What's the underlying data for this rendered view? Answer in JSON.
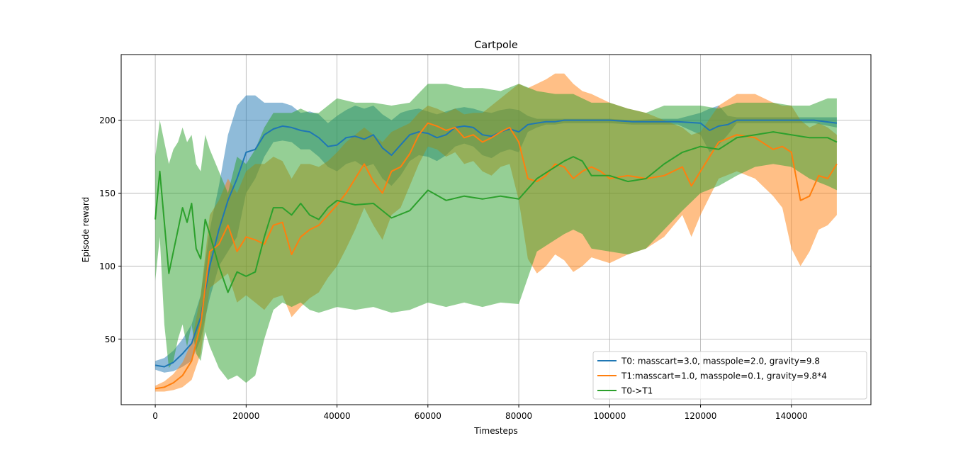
{
  "chart_data": {
    "type": "line",
    "title": "Cartpole",
    "xlabel": "Timesteps",
    "ylabel": "Episode reward",
    "xlim": [
      -7500,
      157500
    ],
    "ylim": [
      5,
      245
    ],
    "xticks": [
      0,
      20000,
      40000,
      60000,
      80000,
      100000,
      120000,
      140000
    ],
    "yticks": [
      50,
      100,
      150,
      200
    ],
    "grid": true,
    "legend_position": "lower-right",
    "series": [
      {
        "name": "T0: masscart=3.0, masspole=2.0, gravity=9.8",
        "color": "#1f77b4",
        "x": [
          0,
          2000,
          4000,
          6000,
          8000,
          10000,
          12000,
          14000,
          16000,
          18000,
          20000,
          22000,
          24000,
          26000,
          28000,
          30000,
          32000,
          34000,
          36000,
          38000,
          40000,
          42000,
          44000,
          46000,
          48000,
          50000,
          52000,
          54000,
          56000,
          58000,
          60000,
          62000,
          64000,
          66000,
          68000,
          70000,
          72000,
          74000,
          76000,
          78000,
          80000,
          82000,
          84000,
          86000,
          88000,
          90000,
          95000,
          100000,
          105000,
          110000,
          115000,
          120000,
          122000,
          124000,
          126000,
          128000,
          130000,
          135000,
          140000,
          145000,
          150000
        ],
        "mean": [
          32,
          31,
          34,
          40,
          47,
          65,
          100,
          125,
          145,
          160,
          178,
          180,
          190,
          194,
          196,
          195,
          193,
          192,
          188,
          182,
          183,
          188,
          189,
          187,
          190,
          181,
          176,
          183,
          190,
          192,
          191,
          188,
          190,
          195,
          196,
          195,
          190,
          189,
          192,
          194,
          192,
          197,
          198,
          199,
          199,
          200,
          200,
          200,
          199,
          199,
          199,
          198,
          193,
          196,
          197,
          200,
          200,
          200,
          200,
          200,
          198
        ],
        "upper": [
          35,
          37,
          42,
          50,
          60,
          80,
          125,
          155,
          190,
          210,
          217,
          217,
          212,
          212,
          212,
          210,
          205,
          206,
          204,
          198,
          203,
          207,
          210,
          208,
          210,
          204,
          200,
          205,
          207,
          208,
          206,
          204,
          206,
          208,
          209,
          208,
          206,
          205,
          207,
          208,
          207,
          203,
          201,
          201,
          201,
          201,
          201,
          201,
          200,
          201,
          201,
          205,
          208,
          210,
          203,
          202,
          202,
          202,
          202,
          202,
          202
        ],
        "lower": [
          29,
          27,
          28,
          31,
          35,
          50,
          78,
          100,
          110,
          120,
          150,
          160,
          175,
          185,
          186,
          185,
          180,
          180,
          175,
          168,
          165,
          170,
          172,
          168,
          170,
          160,
          155,
          162,
          172,
          176,
          175,
          172,
          176,
          182,
          184,
          182,
          176,
          174,
          178,
          180,
          178,
          192,
          195,
          197,
          197,
          198,
          198,
          198,
          197,
          197,
          197,
          190,
          178,
          183,
          190,
          198,
          198,
          198,
          198,
          198,
          195
        ]
      },
      {
        "name": "T1:masscart=1.0, masspole=0.1, gravity=9.8*4",
        "color": "#ff7f0e",
        "x": [
          0,
          2000,
          4000,
          6000,
          8000,
          10000,
          12000,
          14000,
          16000,
          18000,
          20000,
          22000,
          24000,
          26000,
          28000,
          30000,
          32000,
          34000,
          36000,
          38000,
          40000,
          42000,
          44000,
          46000,
          48000,
          50000,
          52000,
          54000,
          56000,
          58000,
          60000,
          62000,
          64000,
          66000,
          68000,
          70000,
          72000,
          74000,
          76000,
          78000,
          80000,
          82000,
          84000,
          86000,
          88000,
          90000,
          92000,
          94000,
          96000,
          98000,
          100000,
          104000,
          108000,
          112000,
          116000,
          118000,
          120000,
          124000,
          128000,
          132000,
          136000,
          138000,
          140000,
          142000,
          144000,
          146000,
          148000,
          150000
        ],
        "mean": [
          16,
          17,
          20,
          25,
          35,
          60,
          110,
          115,
          128,
          110,
          120,
          118,
          115,
          128,
          130,
          108,
          120,
          125,
          128,
          135,
          142,
          150,
          160,
          170,
          158,
          150,
          165,
          168,
          177,
          190,
          198,
          196,
          193,
          195,
          188,
          190,
          185,
          188,
          192,
          195,
          185,
          160,
          158,
          162,
          170,
          168,
          160,
          165,
          168,
          165,
          160,
          162,
          160,
          162,
          168,
          155,
          165,
          185,
          190,
          188,
          180,
          182,
          178,
          145,
          148,
          162,
          160,
          170
        ],
        "upper": [
          18,
          21,
          26,
          34,
          48,
          80,
          135,
          145,
          160,
          150,
          165,
          170,
          170,
          175,
          172,
          160,
          170,
          170,
          168,
          172,
          178,
          185,
          190,
          195,
          190,
          185,
          192,
          195,
          198,
          205,
          210,
          208,
          205,
          208,
          204,
          205,
          205,
          210,
          215,
          220,
          225,
          222,
          225,
          228,
          232,
          232,
          225,
          220,
          218,
          215,
          212,
          208,
          205,
          200,
          195,
          190,
          192,
          210,
          218,
          218,
          212,
          210,
          210,
          200,
          195,
          198,
          195,
          190
        ],
        "lower": [
          14,
          14,
          15,
          17,
          22,
          40,
          85,
          90,
          95,
          75,
          80,
          75,
          70,
          78,
          80,
          65,
          72,
          78,
          82,
          92,
          100,
          112,
          125,
          140,
          128,
          118,
          135,
          140,
          155,
          170,
          182,
          180,
          175,
          178,
          170,
          172,
          165,
          162,
          168,
          170,
          145,
          105,
          95,
          100,
          108,
          104,
          96,
          100,
          106,
          104,
          102,
          108,
          112,
          120,
          135,
          120,
          135,
          160,
          165,
          160,
          148,
          140,
          112,
          100,
          110,
          125,
          128,
          135
        ]
      },
      {
        "name": "T0->T1",
        "color": "#2ca02c",
        "x": [
          0,
          1000,
          2000,
          3000,
          4000,
          5000,
          6000,
          7000,
          8000,
          9000,
          10000,
          11000,
          12000,
          14000,
          16000,
          18000,
          20000,
          22000,
          24000,
          26000,
          28000,
          30000,
          32000,
          34000,
          36000,
          38000,
          40000,
          44000,
          48000,
          52000,
          56000,
          60000,
          64000,
          68000,
          72000,
          76000,
          80000,
          84000,
          88000,
          90000,
          92000,
          94000,
          96000,
          100000,
          104000,
          108000,
          112000,
          116000,
          120000,
          124000,
          128000,
          132000,
          136000,
          140000,
          144000,
          148000,
          150000
        ],
        "mean": [
          132,
          165,
          130,
          95,
          110,
          125,
          140,
          130,
          143,
          112,
          105,
          132,
          122,
          100,
          82,
          96,
          93,
          96,
          120,
          140,
          140,
          135,
          143,
          135,
          132,
          140,
          145,
          142,
          143,
          133,
          138,
          152,
          145,
          148,
          146,
          148,
          146,
          160,
          168,
          172,
          175,
          172,
          162,
          162,
          158,
          160,
          170,
          178,
          182,
          180,
          188,
          190,
          192,
          190,
          188,
          188,
          185
        ],
        "upper": [
          175,
          200,
          185,
          170,
          180,
          185,
          195,
          185,
          190,
          170,
          165,
          190,
          180,
          165,
          150,
          175,
          170,
          180,
          195,
          205,
          205,
          205,
          208,
          205,
          205,
          210,
          215,
          212,
          212,
          210,
          212,
          225,
          225,
          222,
          222,
          220,
          225,
          220,
          218,
          218,
          218,
          215,
          212,
          212,
          208,
          205,
          210,
          210,
          210,
          208,
          212,
          212,
          212,
          210,
          210,
          215,
          215
        ],
        "lower": [
          90,
          120,
          60,
          30,
          35,
          50,
          60,
          45,
          60,
          40,
          35,
          55,
          45,
          30,
          22,
          25,
          20,
          25,
          50,
          70,
          75,
          72,
          75,
          70,
          68,
          70,
          72,
          70,
          72,
          68,
          70,
          75,
          72,
          75,
          72,
          75,
          74,
          110,
          118,
          122,
          125,
          122,
          112,
          110,
          108,
          112,
          125,
          138,
          150,
          155,
          162,
          168,
          170,
          168,
          160,
          155,
          152
        ]
      }
    ]
  }
}
